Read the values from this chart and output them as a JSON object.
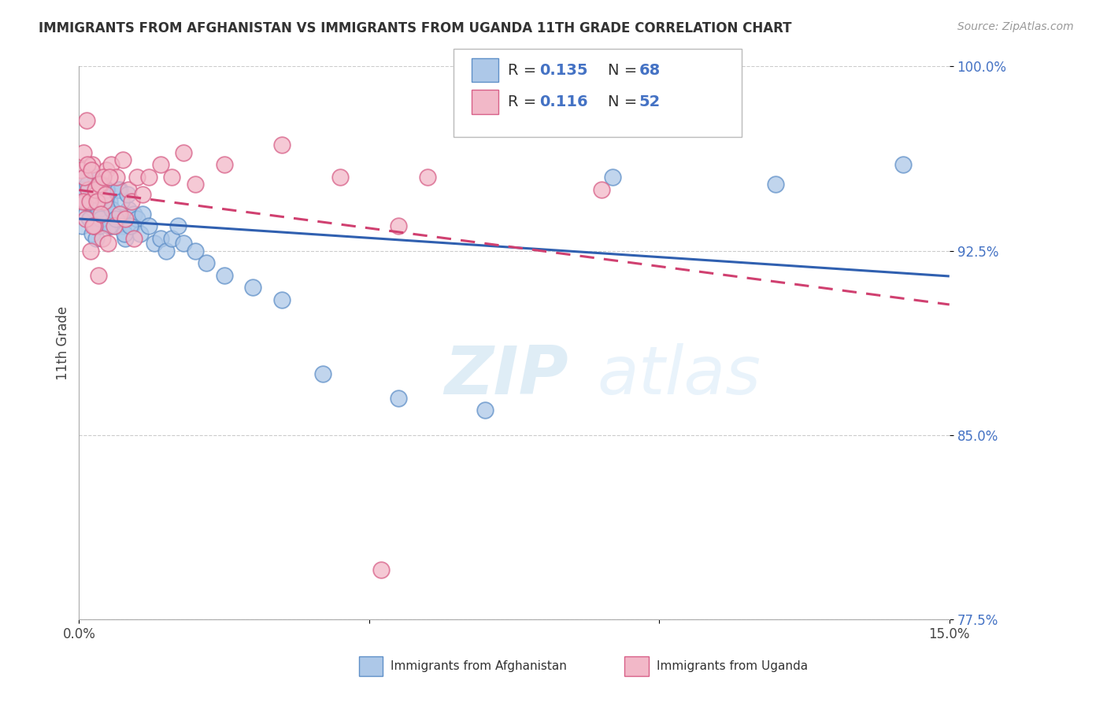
{
  "title": "IMMIGRANTS FROM AFGHANISTAN VS IMMIGRANTS FROM UGANDA 11TH GRADE CORRELATION CHART",
  "source_text": "Source: ZipAtlas.com",
  "ylabel": "11th Grade",
  "watermark_zip": "ZIP",
  "watermark_atlas": "atlas",
  "xlim": [
    0.0,
    15.0
  ],
  "ylim": [
    77.5,
    100.0
  ],
  "xticks": [
    0.0,
    5.0,
    10.0,
    15.0
  ],
  "yticks": [
    77.5,
    85.0,
    92.5,
    100.0
  ],
  "xtick_labels": [
    "0.0%",
    "",
    "",
    "15.0%"
  ],
  "ytick_labels": [
    "77.5%",
    "85.0%",
    "92.5%",
    "100.0%"
  ],
  "afghanistan_color": "#adc8e8",
  "uganda_color": "#f2b8c8",
  "afghanistan_edge": "#6090c8",
  "uganda_edge": "#d86088",
  "trend_afghanistan": "#3060b0",
  "trend_uganda": "#d04070",
  "trend_uganda_dash": true,
  "R_afghanistan": 0.135,
  "N_afghanistan": 68,
  "R_uganda": 0.116,
  "N_uganda": 52,
  "legend_label_afghanistan": "Immigrants from Afghanistan",
  "legend_label_uganda": "Immigrants from Uganda",
  "legend_blue_color": "#4472c4",
  "afghanistan_x": [
    0.05,
    0.08,
    0.1,
    0.12,
    0.15,
    0.18,
    0.2,
    0.22,
    0.25,
    0.28,
    0.3,
    0.32,
    0.35,
    0.38,
    0.4,
    0.42,
    0.45,
    0.48,
    0.5,
    0.52,
    0.55,
    0.6,
    0.65,
    0.7,
    0.75,
    0.8,
    0.85,
    0.9,
    0.95,
    1.0,
    1.05,
    1.1,
    1.2,
    1.3,
    1.4,
    1.5,
    1.6,
    1.7,
    1.8,
    2.0,
    2.2,
    2.5,
    3.0,
    3.5,
    4.2,
    5.5,
    7.0,
    9.2,
    12.0,
    14.2,
    0.06,
    0.1,
    0.14,
    0.19,
    0.23,
    0.27,
    0.33,
    0.37,
    0.43,
    0.47,
    0.53,
    0.57,
    0.63,
    0.68,
    0.73,
    0.78,
    0.83,
    0.88
  ],
  "afghanistan_y": [
    93.5,
    94.8,
    95.5,
    94.0,
    94.5,
    93.8,
    95.0,
    93.2,
    94.2,
    95.5,
    93.0,
    94.5,
    93.5,
    94.0,
    95.2,
    93.8,
    94.5,
    95.0,
    93.8,
    94.5,
    93.5,
    94.0,
    93.5,
    95.0,
    93.5,
    93.0,
    94.2,
    93.5,
    94.0,
    93.8,
    93.2,
    94.0,
    93.5,
    92.8,
    93.0,
    92.5,
    93.0,
    93.5,
    92.8,
    92.5,
    92.0,
    91.5,
    91.0,
    90.5,
    87.5,
    86.5,
    86.0,
    95.5,
    95.2,
    96.0,
    95.0,
    94.5,
    95.2,
    93.8,
    94.5,
    93.5,
    94.2,
    93.8,
    94.5,
    95.0,
    93.5,
    94.2,
    93.8,
    95.0,
    94.5,
    93.2,
    94.8,
    93.5
  ],
  "uganda_x": [
    0.04,
    0.07,
    0.1,
    0.13,
    0.16,
    0.2,
    0.23,
    0.27,
    0.3,
    0.33,
    0.37,
    0.4,
    0.43,
    0.47,
    0.5,
    0.55,
    0.6,
    0.65,
    0.7,
    0.75,
    0.8,
    0.85,
    0.9,
    0.95,
    1.0,
    1.1,
    1.2,
    1.4,
    1.6,
    1.8,
    2.0,
    2.5,
    3.5,
    4.5,
    5.5,
    6.0,
    9.0,
    0.06,
    0.09,
    0.12,
    0.15,
    0.18,
    0.21,
    0.24,
    0.28,
    0.31,
    0.35,
    0.38,
    0.42,
    0.45,
    0.52,
    5.2
  ],
  "uganda_y": [
    95.8,
    96.5,
    94.5,
    97.8,
    95.0,
    92.5,
    96.0,
    93.5,
    94.8,
    91.5,
    95.2,
    93.0,
    94.5,
    95.8,
    92.8,
    96.0,
    93.5,
    95.5,
    94.0,
    96.2,
    93.8,
    95.0,
    94.5,
    93.0,
    95.5,
    94.8,
    95.5,
    96.0,
    95.5,
    96.5,
    95.2,
    96.0,
    96.8,
    95.5,
    93.5,
    95.5,
    95.0,
    94.5,
    95.5,
    93.8,
    96.0,
    94.5,
    95.8,
    93.5,
    95.0,
    94.5,
    95.2,
    94.0,
    95.5,
    94.8,
    95.5,
    79.5
  ]
}
